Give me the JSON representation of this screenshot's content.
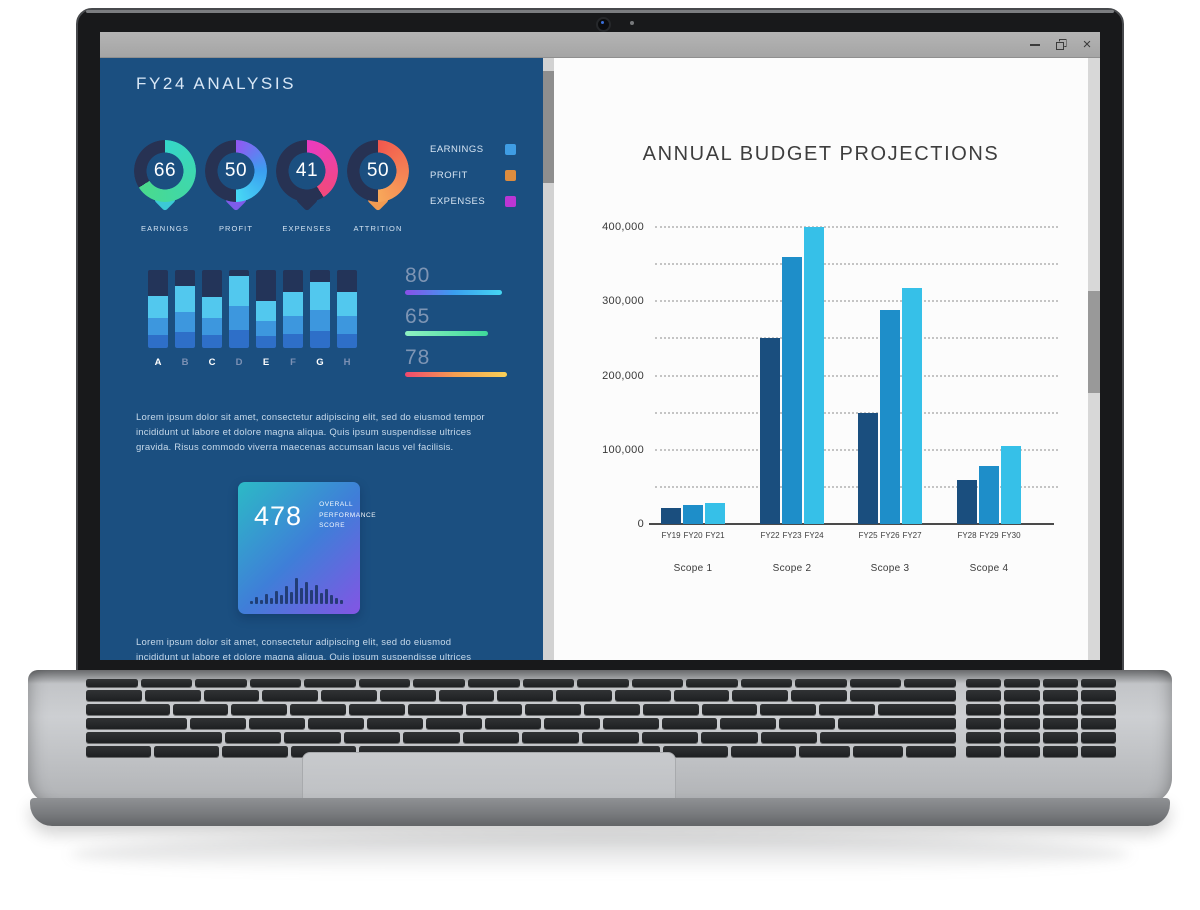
{
  "titlebar": {
    "minimize_icon": "minimize",
    "restore_icon": "restore",
    "close_glyph": "×"
  },
  "dashboard": {
    "title": "FY24 ANALYSIS",
    "ring_track_color": "#273253",
    "gauges": [
      {
        "value": "66",
        "label": "EARNINGS",
        "percent": 66,
        "arc_colors": [
          "#35d6c8",
          "#4ada8c"
        ],
        "tail_color": "#3cc9d6"
      },
      {
        "value": "50",
        "label": "PROFIT",
        "percent": 50,
        "arc_colors": [
          "#9257f2",
          "#3b9ff0",
          "#47d9f5"
        ],
        "tail_color": "#7e5cea"
      },
      {
        "value": "41",
        "label": "EXPENSES",
        "percent": 41,
        "arc_colors": [
          "#e93bc0",
          "#f2497c"
        ],
        "tail_color": "#273253"
      },
      {
        "value": "50",
        "label": "ATTRITION",
        "percent": 50,
        "arc_colors": [
          "#f2584e",
          "#f7a85a"
        ],
        "tail_color": "#f29b52"
      }
    ],
    "legend": [
      {
        "label": "EARNINGS",
        "color": "#3f9de4"
      },
      {
        "label": "PROFIT",
        "color": "#dd8c3e"
      },
      {
        "label": "EXPENSES",
        "color": "#bb36d4"
      }
    ],
    "bar_chart": {
      "type": "bar",
      "categories": [
        "A",
        "B",
        "C",
        "D",
        "E",
        "F",
        "G",
        "H"
      ],
      "values": [
        0.67,
        0.8,
        0.66,
        0.92,
        0.6,
        0.72,
        0.85,
        0.72
      ],
      "track_color": "#233459",
      "segment_colors": [
        "#52c8ee",
        "#3d97de",
        "#2e6fc8"
      ],
      "label_bright": "#ffffff",
      "label_dim": "#7c91b4"
    },
    "progress_lines": [
      {
        "value": "80",
        "length": 97,
        "colors": [
          "#8a4fe8",
          "#3a9ef0",
          "#45d6f2"
        ]
      },
      {
        "value": "65",
        "length": 83,
        "colors": [
          "#8ff2c2",
          "#3eda9a"
        ]
      },
      {
        "value": "78",
        "length": 102,
        "colors": [
          "#f0486e",
          "#f5a050",
          "#f8d058"
        ]
      }
    ],
    "paragraph_1": [
      "Lorem ipsum dolor sit amet, consectetur adipiscing elit, sed do eiusmod tempor",
      "incididunt ut labore et dolore magna aliqua. Quis ipsum suspendisse ultrices",
      "gravida. Risus commodo viverra maecenas accumsan lacus vel facilisis."
    ],
    "score_card": {
      "value": "478",
      "label": "OVERALL PERFORMANCE SCORE",
      "histogram": [
        3,
        7,
        4,
        10,
        6,
        13,
        9,
        18,
        12,
        26,
        16,
        22,
        14,
        19,
        11,
        15,
        9,
        6,
        4
      ],
      "bar_color": "#172f5c"
    },
    "paragraph_2": [
      "Lorem ipsum dolor sit amet, consectetur adipiscing elit, sed do eiusmod",
      "incididunt ut labore et dolore magna aliqua. Quis ipsum suspendisse ultrices"
    ]
  },
  "chart_data": {
    "type": "bar",
    "title": "ANNUAL BUDGET PROJECTIONS",
    "categories": [
      "FY19",
      "FY20",
      "FY21",
      "FY22",
      "FY23",
      "FY24",
      "FY25",
      "FY26",
      "FY27",
      "FY28",
      "FY29",
      "FY30"
    ],
    "groups": [
      {
        "label": "Scope 1",
        "categories": [
          "FY19",
          "FY20",
          "FY21"
        ],
        "values": [
          22000,
          25000,
          28000
        ]
      },
      {
        "label": "Scope 2",
        "categories": [
          "FY22",
          "FY23",
          "FY24"
        ],
        "values": [
          250000,
          360000,
          400000
        ]
      },
      {
        "label": "Scope 3",
        "categories": [
          "FY25",
          "FY26",
          "FY27"
        ],
        "values": [
          150000,
          288000,
          318000
        ]
      },
      {
        "label": "Scope 4",
        "categories": [
          "FY28",
          "FY29",
          "FY30"
        ],
        "values": [
          60000,
          78000,
          105000
        ]
      }
    ],
    "bar_colors": [
      "#1a4e7e",
      "#1e8ec9",
      "#36c0e8"
    ],
    "ylim": [
      0,
      400000
    ],
    "ytick_step": 100000,
    "grid_step": 50000,
    "yticks": [
      "0",
      "100,000",
      "200,000",
      "300,000",
      "400,000"
    ],
    "grid": "dotted",
    "legend_position": "none"
  }
}
